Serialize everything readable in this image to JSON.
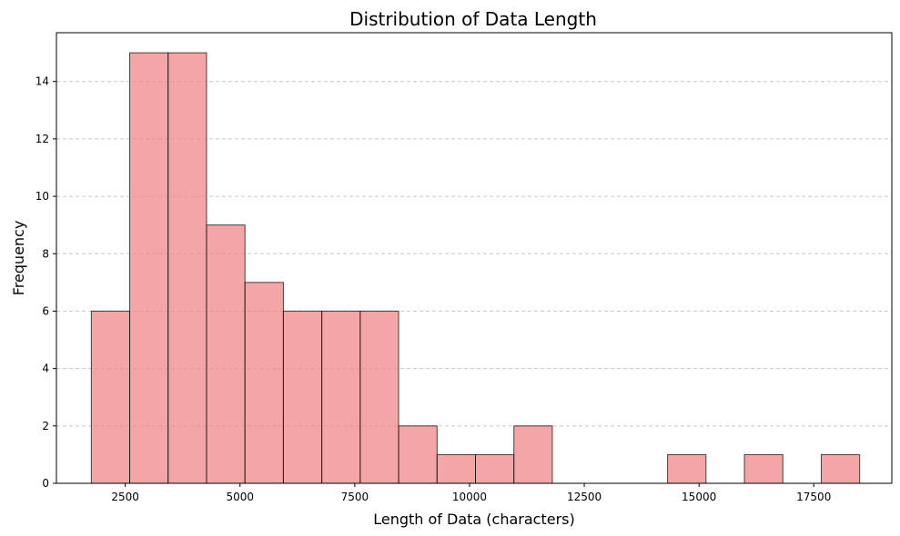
{
  "chart_data": {
    "type": "bar",
    "title": "Distribution of Data Length",
    "xlabel": "Length of Data (characters)",
    "ylabel": "Frequency",
    "bar_color": "#f08080",
    "edge_color": "#000000",
    "grid": "y-dashed",
    "xlim": [
      1000,
      19200
    ],
    "ylim": [
      0,
      15.7
    ],
    "xticks": [
      2500,
      5000,
      7500,
      10000,
      12500,
      15000,
      17500
    ],
    "yticks": [
      0,
      2,
      4,
      6,
      8,
      10,
      12,
      14
    ],
    "bin_edges": [
      1760,
      2597,
      3434,
      4271,
      5108,
      5945,
      6782,
      7619,
      8456,
      9293,
      10130,
      10967,
      11804,
      12641,
      13478,
      14315,
      15152,
      15989,
      16826,
      17663,
      18500
    ],
    "values": [
      6,
      15,
      15,
      9,
      7,
      6,
      6,
      6,
      2,
      1,
      1,
      2,
      0,
      0,
      0,
      1,
      0,
      1,
      0,
      1
    ]
  }
}
